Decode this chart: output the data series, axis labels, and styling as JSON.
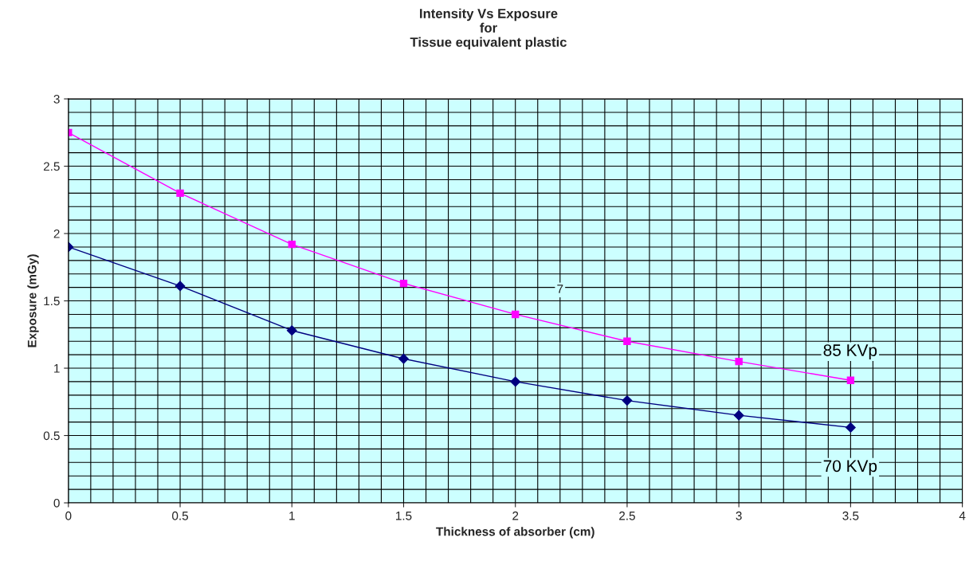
{
  "chart_data": {
    "type": "line",
    "title": "Intensity Vs Exposure\nfor\nTissue equivalent plastic",
    "xlabel": "Thickness of absorber (cm)",
    "ylabel": "Exposure (mGy)",
    "x": [
      0,
      0.5,
      1,
      1.5,
      2,
      2.5,
      3,
      3.5
    ],
    "series": [
      {
        "name": "85 KVp",
        "color": "#ff00ff",
        "marker": "square",
        "values": [
          2.75,
          2.3,
          1.92,
          1.63,
          1.4,
          1.2,
          1.05,
          0.91
        ]
      },
      {
        "name": "70 KVp",
        "color": "#000080",
        "marker": "diamond",
        "values": [
          1.9,
          1.61,
          1.28,
          1.07,
          0.9,
          0.76,
          0.65,
          0.56
        ]
      }
    ],
    "annotations": [
      "7"
    ],
    "xlim": [
      0,
      4
    ],
    "xticks": [
      0,
      0.5,
      1,
      1.5,
      2,
      2.5,
      3,
      3.5,
      4
    ],
    "ylim": [
      0,
      3
    ],
    "yticks": [
      0,
      0.5,
      1,
      1.5,
      2,
      2.5,
      3
    ],
    "grid": true,
    "legend": false,
    "line_style": "solid"
  }
}
